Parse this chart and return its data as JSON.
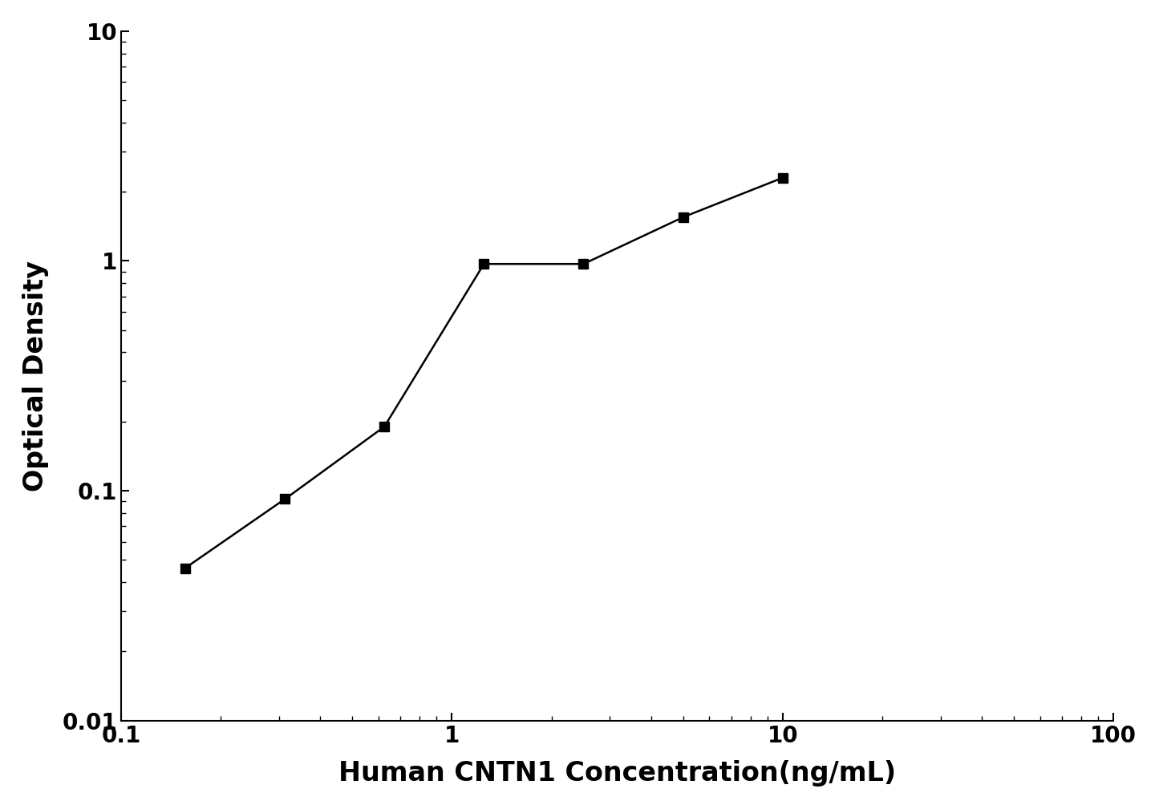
{
  "x_data": [
    0.156,
    0.313,
    0.625,
    1.25,
    2.5,
    5.0,
    10.0
  ],
  "y_data": [
    0.046,
    0.092,
    0.19,
    0.97,
    0.97,
    1.55,
    2.3
  ],
  "xlabel": "Human CNTN1 Concentration(ng/mL)",
  "ylabel": "Optical Density",
  "xlim_log": [
    -1,
    2
  ],
  "ylim_log": [
    -2,
    1
  ],
  "xlim": [
    0.1,
    100
  ],
  "ylim": [
    0.01,
    10
  ],
  "line_color": "#000000",
  "marker": "s",
  "marker_size": 9,
  "marker_color": "#000000",
  "background_color": "#ffffff",
  "xlabel_fontsize": 24,
  "ylabel_fontsize": 24,
  "tick_fontsize": 20,
  "font_weight": "bold",
  "linewidth": 1.8
}
